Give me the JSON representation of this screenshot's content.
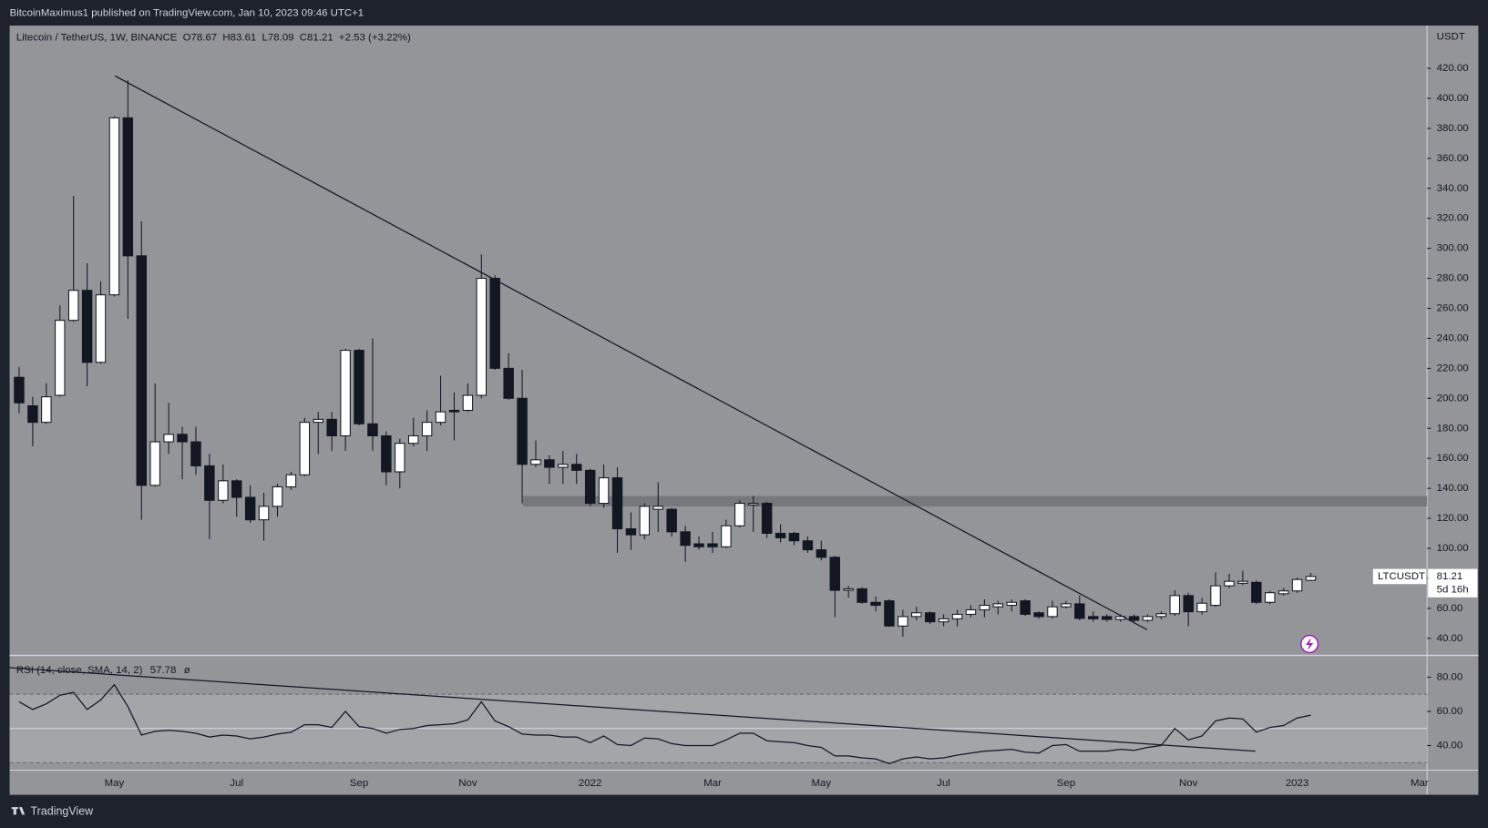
{
  "chart_data": [
    {
      "type": "candlestick",
      "published": "BitcoinMaximus1 published on TradingView.com, Jan 10, 2023 09:46 UTC+1",
      "title": "Litecoin / TetherUS, 1W, BINANCE",
      "ohlc_labels": [
        "O",
        "H",
        "L",
        "C"
      ],
      "change": "+2.53 (+3.22%)",
      "yaxis_label": "USDT",
      "symbol_tag": "LTCUSDT",
      "countdown": "5d 16h",
      "brand": "TradingView",
      "up_color": "#ffffff",
      "down_color": "#131722",
      "categories": [
        null,
        null,
        null,
        null,
        null,
        null,
        null,
        "May",
        null,
        null,
        null,
        null,
        null,
        null,
        null,
        null,
        "Jul",
        null,
        null,
        null,
        null,
        null,
        null,
        null,
        null,
        "Sep",
        null,
        null,
        null,
        null,
        null,
        null,
        null,
        "Nov",
        null,
        null,
        null,
        null,
        null,
        null,
        null,
        null,
        "2022",
        null,
        null,
        null,
        null,
        null,
        null,
        null,
        null,
        "Mar",
        null,
        null,
        null,
        null,
        null,
        null,
        null,
        "May",
        null,
        null,
        null,
        null,
        null,
        null,
        null,
        null,
        "Jul",
        null,
        null,
        null,
        null,
        null,
        null,
        null,
        null,
        "Sep",
        null,
        null,
        null,
        null,
        null,
        null,
        null,
        null,
        "Nov",
        null,
        null,
        null,
        null,
        null,
        null,
        null,
        "2023",
        null,
        null,
        null,
        null,
        null,
        null,
        null,
        null,
        "Mar"
      ],
      "open": [
        214,
        195,
        184,
        202,
        252,
        272,
        224,
        269,
        387,
        295,
        142,
        171,
        176,
        171,
        155,
        132,
        145,
        134,
        119,
        128,
        141,
        149,
        184,
        186,
        175,
        232,
        183,
        175,
        151,
        170,
        175,
        184,
        192,
        192,
        202,
        280,
        220,
        200,
        156,
        159,
        154,
        156,
        152,
        130,
        147,
        113,
        109,
        126,
        126,
        111,
        103,
        103,
        101,
        115,
        129,
        130,
        110,
        110,
        105,
        99,
        94,
        72,
        73,
        64,
        65,
        48.2,
        54.5,
        57,
        51,
        53,
        56,
        59,
        61,
        62,
        65,
        57,
        54.5,
        61,
        63,
        54.5,
        54.5,
        52.6,
        54.5,
        52,
        54.5,
        56.4,
        68.5,
        57.7,
        62,
        75,
        76.7,
        77.3,
        64,
        69.7,
        71.6,
        78.67,
        null,
        null,
        null,
        null,
        null,
        null,
        null,
        null
      ],
      "high": [
        221,
        201,
        210,
        262,
        335,
        290,
        278,
        388,
        412,
        318,
        210,
        197,
        181,
        181,
        163,
        156,
        146,
        142,
        137,
        143,
        151,
        187,
        191,
        191,
        233,
        233,
        240,
        178,
        173,
        187,
        192,
        215,
        204,
        210,
        296,
        282,
        230,
        219,
        172,
        162,
        165,
        163,
        153,
        156,
        154,
        124,
        130,
        144,
        127,
        115,
        108,
        111,
        119,
        132,
        135,
        131,
        116,
        111,
        108,
        105,
        95,
        75,
        74,
        68,
        66,
        59,
        61,
        58,
        56,
        59,
        62,
        66,
        65,
        66,
        66,
        58,
        65,
        65,
        68.5,
        58,
        56,
        56,
        56,
        56,
        58,
        72,
        70.4,
        67,
        84,
        83,
        85,
        78.6,
        71.6,
        73.5,
        80.5,
        83.61,
        null,
        null,
        null,
        null,
        null,
        null,
        null,
        null
      ],
      "low": [
        190,
        168,
        183,
        201,
        251,
        208,
        223,
        268,
        253,
        119,
        141,
        163,
        146,
        149,
        106,
        130,
        121,
        117,
        105,
        121,
        139,
        148,
        163,
        165,
        165,
        182,
        165,
        142,
        140,
        168,
        165,
        182,
        172,
        191,
        200,
        219,
        199,
        130,
        154,
        143,
        143,
        143,
        128,
        127,
        97,
        99,
        106,
        111,
        108,
        91,
        99,
        97,
        100,
        114,
        111,
        107,
        104,
        102,
        97,
        92,
        54,
        67,
        63,
        58,
        47.6,
        41,
        52,
        49.5,
        48,
        48,
        54,
        54,
        56,
        58,
        55,
        53,
        53,
        60,
        52,
        51,
        51,
        51,
        50,
        50.7,
        52.6,
        55,
        48,
        55.8,
        61,
        73.5,
        75.4,
        62.8,
        62.8,
        68.5,
        70.4,
        78.09,
        null,
        null,
        null,
        null,
        null,
        null,
        null,
        null
      ],
      "close": [
        197,
        184,
        201,
        252,
        272,
        224,
        269,
        387,
        295,
        142,
        171,
        176,
        171,
        155,
        132,
        145,
        134,
        119,
        128,
        141,
        149,
        184,
        186,
        175,
        232,
        183,
        175,
        151,
        170,
        175,
        184,
        191,
        191,
        202,
        280,
        220,
        200,
        156,
        159,
        154,
        156,
        152,
        130,
        147,
        113,
        109,
        128,
        128,
        111,
        102,
        101,
        101,
        115,
        130,
        130,
        110,
        107,
        105,
        99,
        94,
        72,
        73,
        64,
        62,
        48.2,
        54.5,
        57,
        51,
        53,
        56,
        59,
        62,
        63,
        64,
        56,
        54.5,
        61,
        63,
        53.3,
        53,
        52.6,
        54.5,
        52,
        54.5,
        56.4,
        68.5,
        57.7,
        63.4,
        75,
        78,
        78,
        64,
        70.4,
        71.6,
        79.2,
        81.21,
        null,
        null,
        null,
        null,
        null,
        null,
        null,
        null
      ],
      "ylim": [
        29.25,
        448.5
      ],
      "yticks": [
        {
          "value": 40,
          "label": "40.00"
        },
        {
          "value": 60,
          "label": "60.00"
        },
        {
          "value": 80,
          "label": "80.00"
        },
        {
          "value": 100,
          "label": "100.00"
        },
        {
          "value": 120,
          "label": "120.00"
        },
        {
          "value": 140,
          "label": "140.00"
        },
        {
          "value": 160,
          "label": "160.00"
        },
        {
          "value": 180,
          "label": "180.00"
        },
        {
          "value": 200,
          "label": "200.00"
        },
        {
          "value": 220,
          "label": "220.00"
        },
        {
          "value": 240,
          "label": "240.00"
        },
        {
          "value": 260,
          "label": "260.00"
        },
        {
          "value": 280,
          "label": "280.00"
        },
        {
          "value": 300,
          "label": "300.00"
        },
        {
          "value": 320,
          "label": "320.00"
        },
        {
          "value": 340,
          "label": "340.00"
        },
        {
          "value": 360,
          "label": "360.00"
        },
        {
          "value": 380,
          "label": "380.00"
        },
        {
          "value": 400,
          "label": "400.00"
        },
        {
          "value": 420,
          "label": "420.00"
        }
      ],
      "grid": false
    },
    {
      "type": "line",
      "title": "RSI (14, close, SMA, 14, 2)",
      "icon": "ø",
      "color": "#131722",
      "values": [
        65.6,
        61.1,
        64.4,
        69.4,
        71.1,
        61.1,
        66.7,
        75.6,
        62.8,
        46.1,
        48.3,
        48.9,
        48.3,
        47.2,
        45,
        46.1,
        45.6,
        43.9,
        45,
        46.7,
        47.8,
        52.2,
        52.2,
        50.6,
        60,
        51.1,
        50,
        47.2,
        49.4,
        50,
        51.7,
        52.2,
        52.8,
        55,
        65.6,
        54.4,
        51.1,
        46.7,
        46.1,
        46.1,
        45,
        45,
        41.7,
        45.6,
        40.6,
        40,
        44.4,
        43.9,
        41.1,
        40,
        40,
        40,
        43.3,
        47.2,
        47.2,
        42.8,
        42.2,
        41.7,
        40,
        38.9,
        33.9,
        33.9,
        32.8,
        32.2,
        29.4,
        32.2,
        33.3,
        32.2,
        32.8,
        34.4,
        35.6,
        36.7,
        37.2,
        37.8,
        36.1,
        35.6,
        40,
        40.6,
        36.7,
        36.7,
        36.7,
        37.8,
        37.2,
        38.9,
        40,
        50,
        43.3,
        45.6,
        54.4,
        56.1,
        55.6,
        47.8,
        50.6,
        51.7,
        56.1,
        57.78,
        null,
        null,
        null,
        null,
        null,
        null,
        null,
        null
      ],
      "ylim": [
        25.6,
        92.2
      ],
      "yticks": [
        {
          "value": 40,
          "label": "40.00"
        },
        {
          "value": 60,
          "label": "60.00"
        },
        {
          "value": 80,
          "label": "80.00"
        }
      ],
      "levels": [
        70,
        50,
        30
      ],
      "grid": false
    }
  ]
}
